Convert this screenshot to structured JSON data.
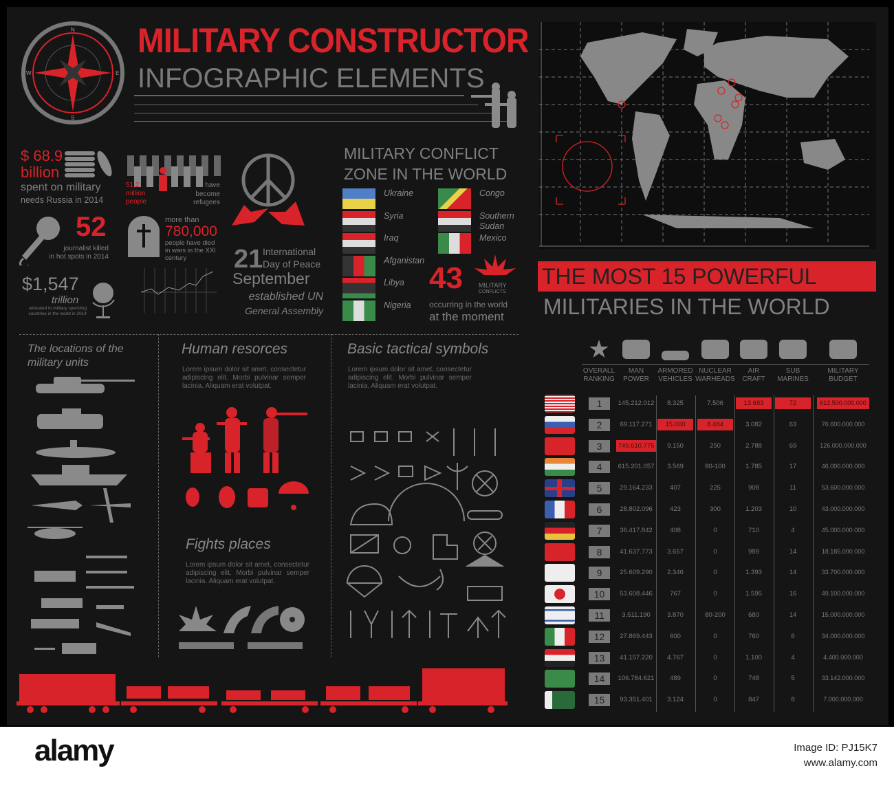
{
  "header": {
    "title": "MILITARY CONSTRUCTOR",
    "subtitle": "INFOGRAPHIC ELEMENTS",
    "compass_letters": [
      "N",
      "E",
      "S",
      "W"
    ]
  },
  "stats": {
    "russia_amount": "$ 68.9",
    "russia_unit": "billion",
    "russia_desc1": "spent on military",
    "russia_desc2": "needs Russia in 2014",
    "refugees_num1": "51,2",
    "refugees_num2": "million",
    "refugees_num3": "people",
    "refugees_desc1": "have",
    "refugees_desc2": "become",
    "refugees_desc3": "refugees",
    "journalists_num": "52",
    "journalists_desc1": "journalist killed",
    "journalists_desc2": "in hot spots in 2014",
    "deaths_pre": "more than",
    "deaths_num": "780,000",
    "deaths_desc1": "people have died",
    "deaths_desc2": "in wars in the XXI",
    "deaths_desc3": "century",
    "spend_num": "$1,547",
    "spend_unit": "trillion",
    "spend_desc1": "allocated to military spending",
    "spend_desc2": "countries in the world in 2014",
    "peace_day": "21",
    "peace_l1": "International",
    "peace_l2": "Day of Peace",
    "peace_month": "September",
    "peace_l3": "established UN",
    "peace_l4": "General Assembly"
  },
  "conflicts": {
    "title1": "MILITARY CONFLICT",
    "title2": "ZONE IN THE WORLD",
    "left": [
      {
        "name": "Ukraine",
        "flag": "ukraine"
      },
      {
        "name": "Syria",
        "flag": "syria"
      },
      {
        "name": "Iraq",
        "flag": "iraq"
      },
      {
        "name": "Afganistan",
        "flag": "afghanistan"
      },
      {
        "name": "Libya",
        "flag": "libya"
      },
      {
        "name": "Nigeria",
        "flag": "nigeria"
      }
    ],
    "right": [
      {
        "name": "Congo",
        "flag": "congo"
      },
      {
        "name": "Southern Sudan",
        "flag": "south-sudan"
      },
      {
        "name": "Mexico",
        "flag": "mexico"
      }
    ],
    "count": "43",
    "count_l1": "MILITARY",
    "count_l2": "CONFLICTS",
    "desc1": "occurring in the world",
    "desc2": "at the moment"
  },
  "ranking_title": {
    "line1": "THE MOST 15 POWERFUL",
    "line2": "MILITARIES IN THE WORLD"
  },
  "sections": {
    "locations": {
      "title1": "The locations of the",
      "title2": "military units"
    },
    "human": {
      "title": "Human resorces",
      "text": "Lorem ipsum dolor sit amet, consectetur adipiscing elit. Morbi pulvinar semper lacinia. Aliquam erat volutpat."
    },
    "fights": {
      "title": "Fights places",
      "text": "Lorem ipsum dolor sit amet, consectetur adipiscing elit. Morbi pulvinar semper lacinia. Aliquam erat volutpat."
    },
    "tactical": {
      "title": "Basic tactical symbols",
      "text": "Lorem ipsum dolor sit amet, consectetur adipiscing elit. Morbi pulvinar semper lacinia. Aliquam erat volutpat."
    }
  },
  "table": {
    "headers": [
      [
        "OVERALL",
        "RANKING"
      ],
      [
        "MAN",
        "POWER"
      ],
      [
        "ARMORED",
        "VEHICLES"
      ],
      [
        "NUCLEAR",
        "WARHEADS"
      ],
      [
        "AIR",
        "CRAFT"
      ],
      [
        "SUB",
        "MARINES"
      ],
      [
        "MILITARY",
        "BUDGET"
      ]
    ],
    "header_icons": [
      "star-icon",
      "soldiers-icon",
      "tank-icon",
      "nuclear-warhead-icon",
      "jet-icon",
      "submarine-icon",
      "coins-icon"
    ],
    "highlight_color": "#d8232a",
    "rows": [
      {
        "rank": "1",
        "flag": "usa",
        "man": "145.212.012",
        "armored": "8.325",
        "nuclear": "7.506",
        "air": "13.683",
        "sub": "72",
        "budget": "612.500.000.000",
        "hi": [
          "air",
          "sub",
          "budget"
        ]
      },
      {
        "rank": "2",
        "flag": "russia",
        "man": "69.117.271",
        "armored": "15.000",
        "nuclear": "8.484",
        "air": "3.082",
        "sub": "63",
        "budget": "76.600.000.000",
        "hi": [
          "armored",
          "nuclear"
        ]
      },
      {
        "rank": "3",
        "flag": "china",
        "man": "749.610.775",
        "armored": "9.150",
        "nuclear": "250",
        "air": "2.788",
        "sub": "69",
        "budget": "126.000.000.000",
        "hi": [
          "man"
        ]
      },
      {
        "rank": "4",
        "flag": "india",
        "man": "615.201.057",
        "armored": "3.569",
        "nuclear": "80-100",
        "air": "1.785",
        "sub": "17",
        "budget": "46.000.000.000",
        "hi": []
      },
      {
        "rank": "5",
        "flag": "uk",
        "man": "29.164.233",
        "armored": "407",
        "nuclear": "225",
        "air": "908",
        "sub": "11",
        "budget": "53.600.000.000",
        "hi": []
      },
      {
        "rank": "6",
        "flag": "france",
        "man": "28.802.096",
        "armored": "423",
        "nuclear": "300",
        "air": "1.203",
        "sub": "10",
        "budget": "43.000.000.000",
        "hi": []
      },
      {
        "rank": "7",
        "flag": "germany",
        "man": "36.417.842",
        "armored": "408",
        "nuclear": "0",
        "air": "710",
        "sub": "4",
        "budget": "45.000.000.000",
        "hi": []
      },
      {
        "rank": "8",
        "flag": "turkey",
        "man": "41.637.773",
        "armored": "3.657",
        "nuclear": "0",
        "air": "989",
        "sub": "14",
        "budget": "18.185.000.000",
        "hi": []
      },
      {
        "rank": "9",
        "flag": "south-korea",
        "man": "25.609.290",
        "armored": "2.346",
        "nuclear": "0",
        "air": "1.393",
        "sub": "14",
        "budget": "33.700.000.000",
        "hi": []
      },
      {
        "rank": "10",
        "flag": "japan",
        "man": "53.608.446",
        "armored": "767",
        "nuclear": "0",
        "air": "1.595",
        "sub": "16",
        "budget": "49.100.000.000",
        "hi": []
      },
      {
        "rank": "11",
        "flag": "israel",
        "man": "3.511.190",
        "armored": "3.870",
        "nuclear": "80-200",
        "air": "680",
        "sub": "14",
        "budget": "15.000.000.000",
        "hi": []
      },
      {
        "rank": "12",
        "flag": "italy",
        "man": "27.869.443",
        "armored": "600",
        "nuclear": "0",
        "air": "760",
        "sub": "6",
        "budget": "34.000.000.000",
        "hi": []
      },
      {
        "rank": "13",
        "flag": "egypt",
        "man": "41.157.220",
        "armored": "4.767",
        "nuclear": "0",
        "air": "1.100",
        "sub": "4",
        "budget": "4.400.000.000",
        "hi": []
      },
      {
        "rank": "14",
        "flag": "brazil",
        "man": "106.784.621",
        "armored": "489",
        "nuclear": "0",
        "air": "748",
        "sub": "5",
        "budget": "33.142.000.000",
        "hi": []
      },
      {
        "rank": "15",
        "flag": "pakistan",
        "man": "93.351.401",
        "armored": "3.124",
        "nuclear": "0",
        "air": "847",
        "sub": "8",
        "budget": "7.000.000.000",
        "hi": []
      }
    ]
  },
  "footer": {
    "logo": "alamy",
    "image_id": "Image ID: PJ15K7",
    "url": "www.alamy.com"
  },
  "colors": {
    "red": "#d8232a",
    "gray": "#808080",
    "background": "#151515"
  }
}
